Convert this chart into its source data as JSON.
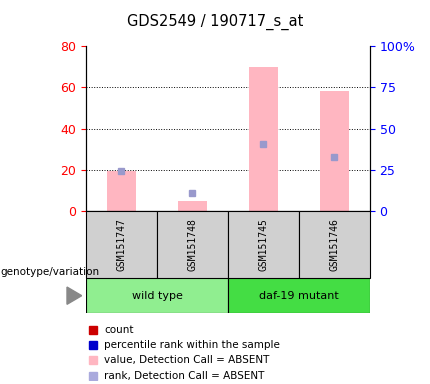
{
  "title": "GDS2549 / 190717_s_at",
  "samples": [
    "GSM151747",
    "GSM151748",
    "GSM151745",
    "GSM151746"
  ],
  "pink_values": [
    19.5,
    5.0,
    70.0,
    58.0
  ],
  "blue_values": [
    19.5,
    9.0,
    32.5,
    26.5
  ],
  "left_ylim": [
    0,
    80
  ],
  "right_ylim": [
    0,
    100
  ],
  "left_yticks": [
    0,
    20,
    40,
    60,
    80
  ],
  "right_yticks": [
    0,
    25,
    50,
    75,
    100
  ],
  "right_yticklabels": [
    "0",
    "25",
    "50",
    "75",
    "100%"
  ],
  "grid_lines": [
    20,
    40,
    60
  ],
  "bar_width": 0.25,
  "sample_area_color": "#d0d0d0",
  "wt_color": "#90ee90",
  "daf_color": "#44dd44",
  "pink_color": "#ffb6c1",
  "blue_sq_color": "#9999cc",
  "legend_items": [
    {
      "color": "#cc0000",
      "label": "count"
    },
    {
      "color": "#0000cc",
      "label": "percentile rank within the sample"
    },
    {
      "color": "#ffb6c1",
      "label": "value, Detection Call = ABSENT"
    },
    {
      "color": "#aaaadd",
      "label": "rank, Detection Call = ABSENT"
    }
  ],
  "genotype_label": "genotype/variation"
}
